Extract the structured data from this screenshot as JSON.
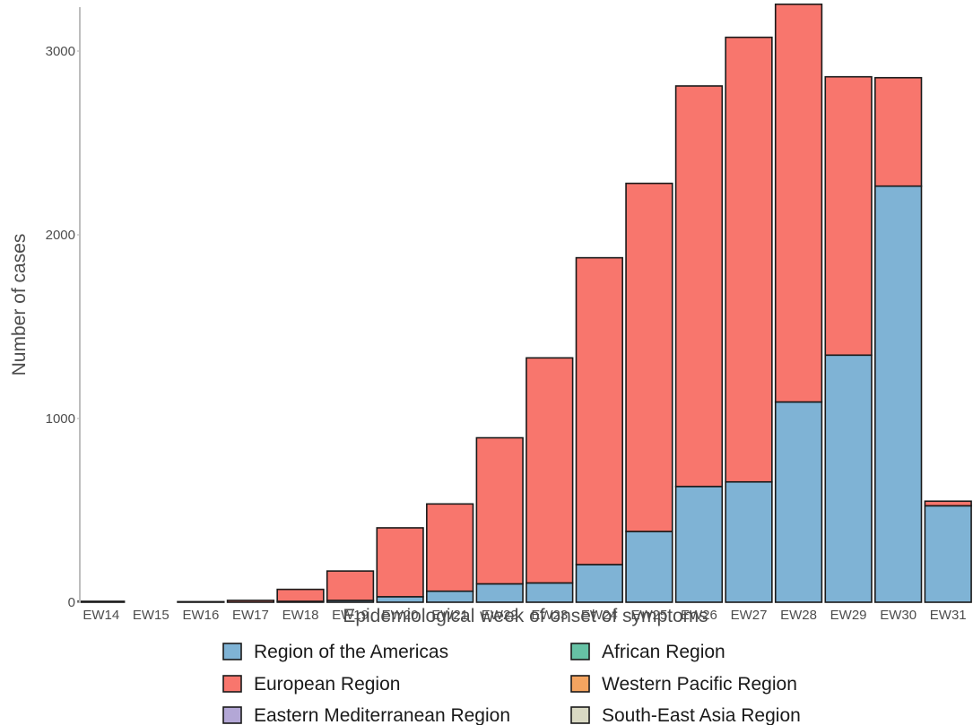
{
  "chart_data": {
    "type": "bar",
    "stacked": true,
    "xlabel": "Epidemiological week of onset of symptoms",
    "ylabel": "Number of cases",
    "ylim": [
      0,
      3260
    ],
    "yticks": [
      0,
      1000,
      2000,
      3000
    ],
    "ytick_labels": [
      "0",
      "1000",
      "2000",
      "3000"
    ],
    "grid": false,
    "legend_position": "bottom",
    "categories": [
      "EW14",
      "EW15",
      "EW16",
      "EW17",
      "EW18",
      "EW19",
      "EW20",
      "EW21",
      "EW22",
      "EW23",
      "EW24",
      "EW25",
      "EW26",
      "EW27",
      "EW28",
      "EW29",
      "EW30",
      "EW31"
    ],
    "series": [
      {
        "name": "Region of the Americas",
        "color": "#7fb3d5",
        "values": [
          0,
          0,
          0,
          0,
          5,
          10,
          30,
          60,
          100,
          105,
          205,
          385,
          630,
          655,
          1090,
          1345,
          2265,
          525
        ]
      },
      {
        "name": "European Region",
        "color": "#f8766d",
        "values": [
          5,
          0,
          3,
          10,
          65,
          160,
          375,
          475,
          795,
          1225,
          1670,
          1895,
          2180,
          2420,
          2165,
          1515,
          590,
          25
        ]
      },
      {
        "name": "African Region",
        "color": "#66c2a5",
        "values": [
          0,
          0,
          0,
          0,
          0,
          0,
          0,
          0,
          0,
          0,
          0,
          0,
          0,
          0,
          0,
          0,
          0,
          0
        ]
      },
      {
        "name": "Western Pacific Region",
        "color": "#f4a460",
        "values": [
          0,
          0,
          0,
          0,
          0,
          0,
          0,
          0,
          0,
          0,
          0,
          0,
          0,
          0,
          0,
          0,
          0,
          0
        ]
      },
      {
        "name": "Eastern Mediterranean Region",
        "color": "#b3a7d6",
        "values": [
          0,
          0,
          0,
          0,
          0,
          0,
          0,
          0,
          0,
          0,
          0,
          0,
          0,
          0,
          0,
          0,
          0,
          0
        ]
      },
      {
        "name": "South-East Asia Region",
        "color": "#d9d9c3",
        "values": [
          0,
          0,
          0,
          0,
          0,
          0,
          0,
          0,
          0,
          0,
          0,
          0,
          0,
          0,
          0,
          0,
          0,
          0
        ]
      }
    ],
    "legend_order": [
      "Region of the Americas",
      "African Region",
      "European Region",
      "Western Pacific Region",
      "Eastern Mediterranean Region",
      "South-East Asia Region"
    ]
  }
}
